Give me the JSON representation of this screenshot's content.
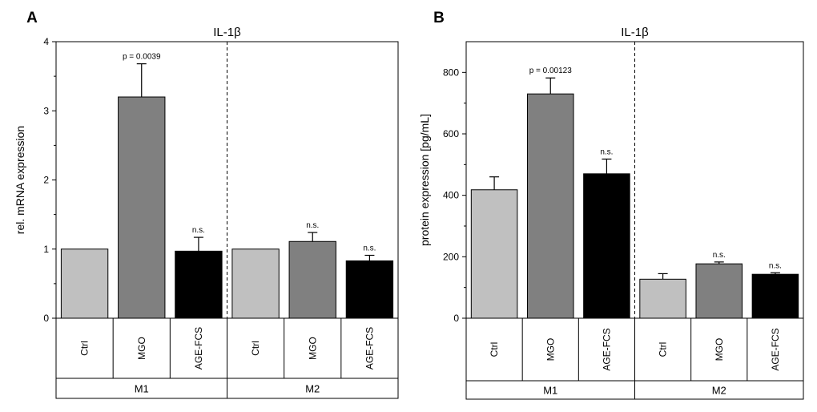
{
  "chart_data": [
    {
      "type": "bar",
      "panel_label": "A",
      "title": "IL-1β",
      "ylabel": "rel. mRNA expression",
      "xlabel": "",
      "ylim": [
        0,
        4
      ],
      "yticks": [
        "0",
        "1",
        "2",
        "3",
        "4"
      ],
      "categories": [
        "Ctrl",
        "MGO",
        "AGE-FCS",
        "Ctrl",
        "MGO",
        "AGE-FCS"
      ],
      "groups": [
        "M1",
        "M2"
      ],
      "values": [
        1.0,
        3.2,
        0.97,
        1.0,
        1.11,
        0.83
      ],
      "errors": [
        0,
        0.48,
        0.2,
        0,
        0.13,
        0.08
      ],
      "annotations": [
        "",
        "p = 0.0039",
        "n.s.",
        "",
        "n.s.",
        "n.s."
      ],
      "colors": [
        "#c0c0c0",
        "#808080",
        "#000000",
        "#c0c0c0",
        "#808080",
        "#000000"
      ],
      "grid": false
    },
    {
      "type": "bar",
      "panel_label": "B",
      "title": "IL-1β",
      "ylabel": "protein expression [pg/mL]",
      "xlabel": "",
      "ylim": [
        0,
        900
      ],
      "yticks": [
        "0",
        "200",
        "400",
        "600",
        "800"
      ],
      "categories": [
        "Ctrl",
        "MGO",
        "AGE-FCS",
        "Ctrl",
        "MGO",
        "AGE-FCS"
      ],
      "groups": [
        "M1",
        "M2"
      ],
      "values": [
        418,
        730,
        470,
        127,
        177,
        143
      ],
      "errors": [
        42,
        52,
        48,
        18,
        6,
        5
      ],
      "annotations": [
        "",
        "p = 0.00123",
        "n.s.",
        "",
        "n.s.",
        "n.s."
      ],
      "colors": [
        "#c0c0c0",
        "#808080",
        "#000000",
        "#c0c0c0",
        "#808080",
        "#000000"
      ],
      "grid": false
    }
  ]
}
